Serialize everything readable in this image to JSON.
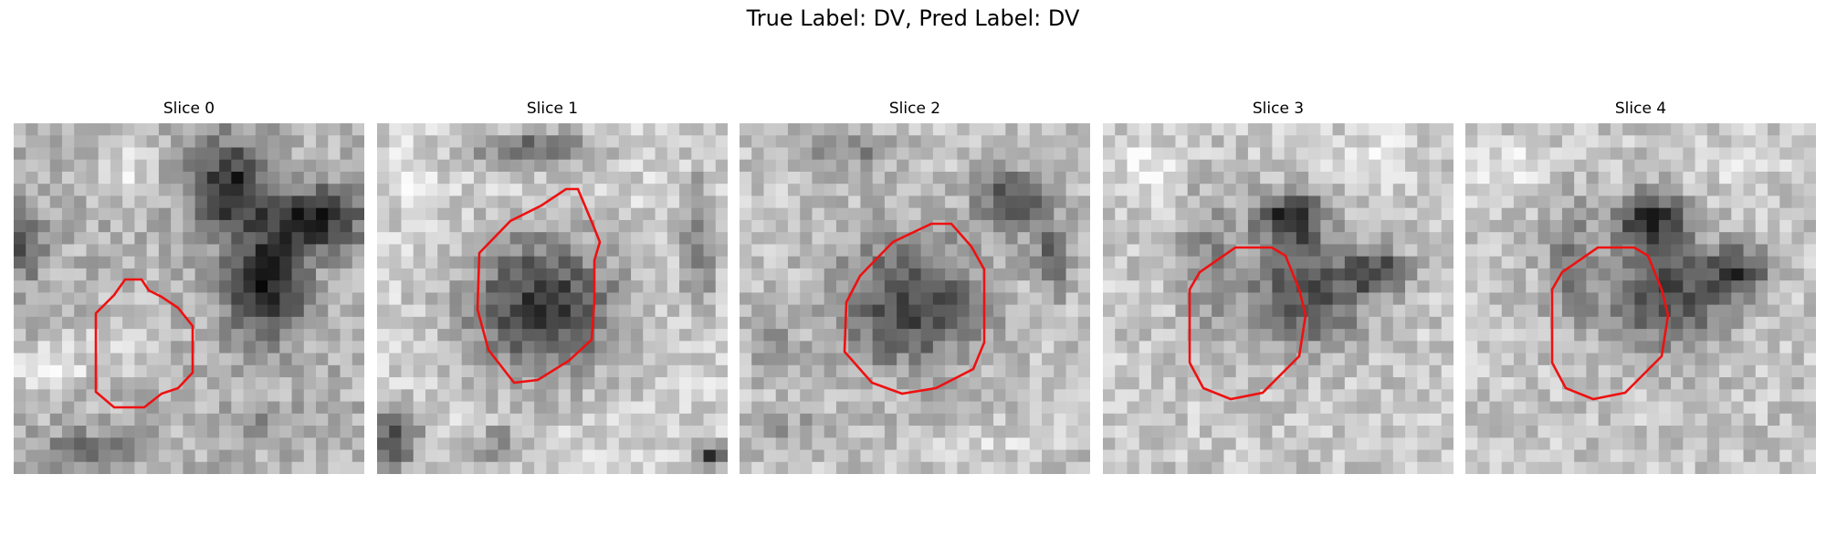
{
  "figure": {
    "title": "True Label: DV, Pred Label: DV",
    "contour_color": "#ee1111"
  },
  "panels": [
    {
      "title": "Slice 0"
    },
    {
      "title": "Slice 1"
    },
    {
      "title": "Slice 2"
    },
    {
      "title": "Slice 3"
    },
    {
      "title": "Slice 4"
    }
  ]
}
